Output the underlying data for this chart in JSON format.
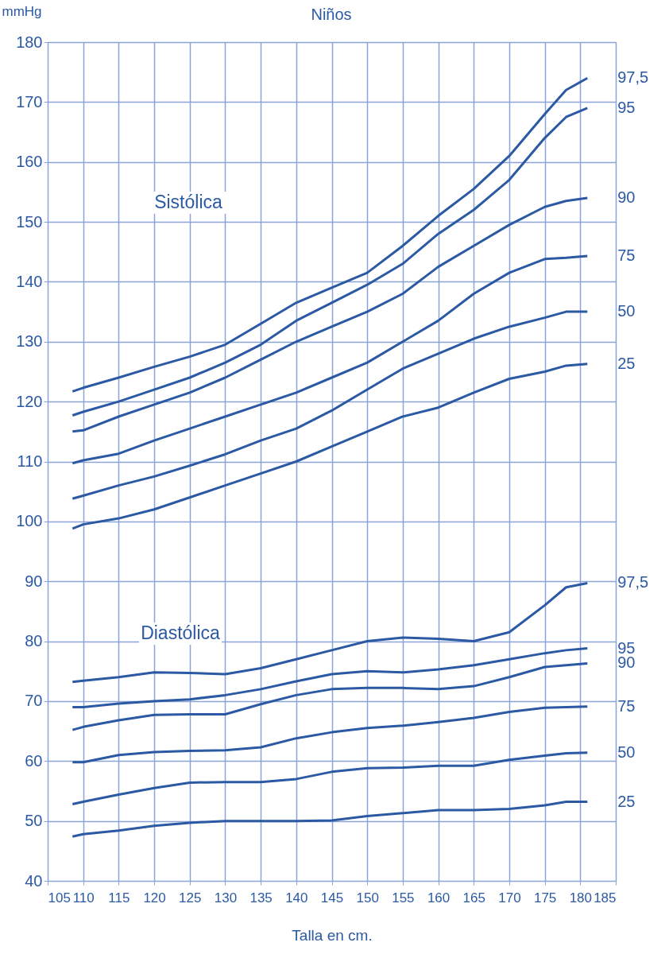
{
  "chart_data": {
    "type": "line",
    "title": "Niños",
    "xlabel": "Talla en cm.",
    "ylabel": "mmHg",
    "x": [
      108.5,
      110,
      115,
      120,
      125,
      130,
      135,
      140,
      145,
      150,
      155,
      160,
      165,
      170,
      175,
      178,
      181
    ],
    "xlim": [
      105,
      185
    ],
    "xticks": [
      105,
      110,
      115,
      120,
      125,
      130,
      135,
      140,
      145,
      150,
      155,
      160,
      165,
      170,
      175,
      180,
      185
    ],
    "ylim": [
      40,
      180
    ],
    "yticks": [
      40,
      50,
      60,
      70,
      80,
      90,
      100,
      110,
      120,
      130,
      140,
      150,
      160,
      170,
      180
    ],
    "grid": true,
    "legend": false,
    "annotations": [
      "Sistólica",
      "Diastólica"
    ],
    "series": [
      {
        "name": "97,5",
        "color": "#2b59a3",
        "values": [
          121.7,
          122.3,
          124,
          125.8,
          127.5,
          129.5,
          133,
          136.5,
          139,
          141.5,
          146,
          151,
          155.5,
          161,
          168,
          172,
          174
        ]
      },
      {
        "name": "95",
        "color": "#2b59a3",
        "values": [
          117.7,
          118.3,
          120,
          122,
          124,
          126.5,
          129.5,
          133.5,
          136.5,
          139.5,
          143,
          148,
          152,
          157,
          164,
          167.5,
          169
        ]
      },
      {
        "name": "90",
        "color": "#2b59a3",
        "values": [
          115,
          115.2,
          117.5,
          119.5,
          121.5,
          124,
          127,
          130,
          132.5,
          135,
          138,
          142.5,
          146,
          149.5,
          152.5,
          153.5,
          154
        ]
      },
      {
        "name": "75",
        "color": "#2b59a3",
        "values": [
          109.7,
          110.2,
          111.3,
          113.5,
          115.5,
          117.5,
          119.5,
          121.5,
          124,
          126.5,
          130,
          133.5,
          138,
          141.5,
          143.8,
          144,
          144.3
        ]
      },
      {
        "name": "50",
        "color": "#2b59a3",
        "values": [
          103.8,
          104.3,
          106,
          107.5,
          109.3,
          111.2,
          113.5,
          115.5,
          118.5,
          122,
          125.5,
          128,
          130.5,
          132.5,
          134,
          135,
          135
        ]
      },
      {
        "name": "25",
        "color": "#2b59a3",
        "values": [
          98.8,
          99.5,
          100.5,
          102,
          104,
          106,
          108,
          110,
          112.5,
          115,
          117.5,
          119,
          121.5,
          123.8,
          125,
          126,
          126.3
        ]
      },
      {
        "name": "97,5",
        "color": "#2b59a3",
        "values": [
          73.2,
          73.4,
          74,
          74.8,
          74.7,
          74.5,
          75.5,
          77,
          78.5,
          80,
          80.6,
          80.4,
          80,
          81.5,
          86,
          89,
          89.7
        ]
      },
      {
        "name": "95",
        "color": "#2b59a3",
        "values": [
          69,
          69,
          69.6,
          70,
          70.3,
          71,
          72,
          73.3,
          74.5,
          75,
          74.8,
          75.3,
          76,
          77,
          78,
          78.5,
          78.8
        ]
      },
      {
        "name": "90",
        "color": "#2b59a3",
        "values": [
          65.2,
          65.7,
          66.8,
          67.7,
          67.8,
          67.8,
          69.5,
          71,
          72,
          72.2,
          72.2,
          72,
          72.5,
          74,
          75.7,
          76,
          76.3
        ]
      },
      {
        "name": "75",
        "color": "#2b59a3",
        "values": [
          59.8,
          59.8,
          61,
          61.5,
          61.7,
          61.8,
          62.3,
          63.8,
          64.8,
          65.5,
          65.9,
          66.5,
          67.2,
          68.2,
          68.9,
          69,
          69.1
        ]
      },
      {
        "name": "50",
        "color": "#2b59a3",
        "values": [
          52.8,
          53.2,
          54.4,
          55.5,
          56.4,
          56.5,
          56.5,
          57,
          58.2,
          58.8,
          58.9,
          59.2,
          59.2,
          60.2,
          60.9,
          61.3,
          61.4
        ]
      },
      {
        "name": "25",
        "color": "#2b59a3",
        "values": [
          47.4,
          47.8,
          48.4,
          49.2,
          49.7,
          50,
          50,
          50,
          50.1,
          50.8,
          51.3,
          51.8,
          51.8,
          52,
          52.6,
          53.2,
          53.2
        ]
      }
    ]
  }
}
